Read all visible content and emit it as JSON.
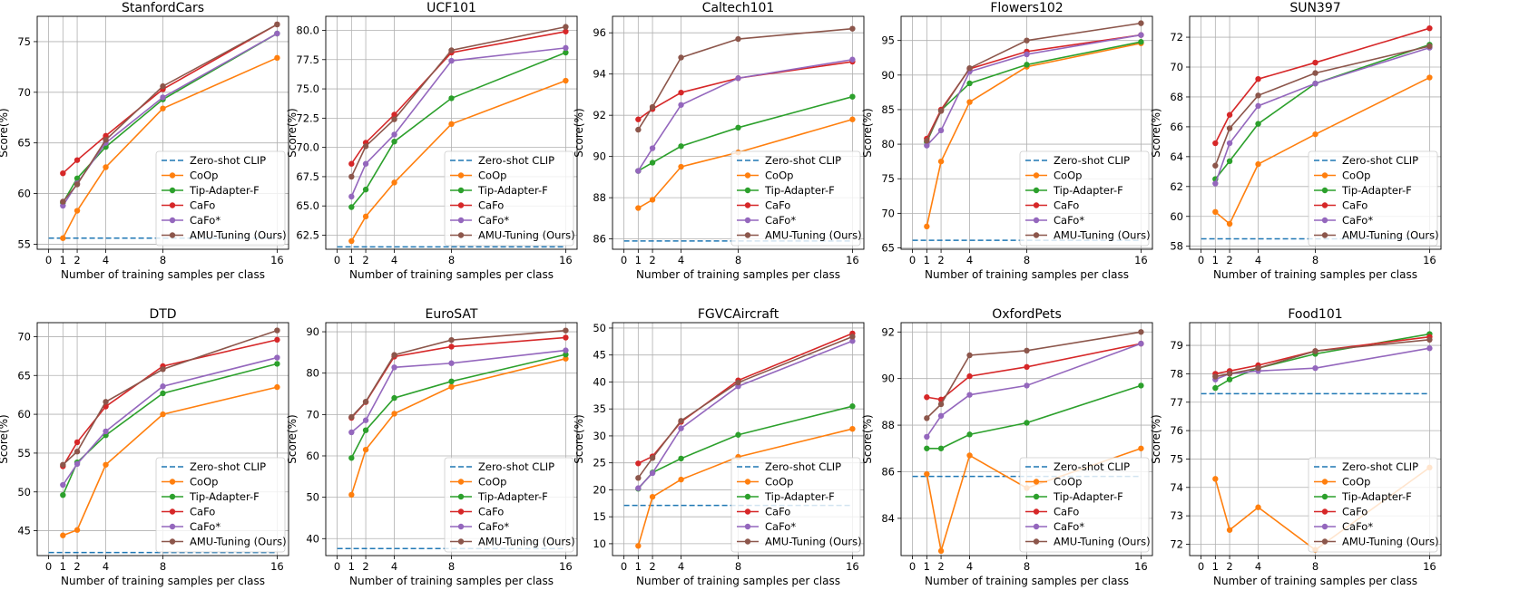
{
  "figure": {
    "xlabel": "Number of training samples per class",
    "ylabel": "Score(%)",
    "x_ticks": [
      0,
      1,
      2,
      4,
      8,
      16
    ],
    "shots": [
      1,
      2,
      4,
      8,
      16
    ],
    "legend": [
      "Zero-shot CLIP",
      "CoOp",
      "Tip-Adapter-F",
      "CaFo",
      "CaFo*",
      "AMU-Tuning (Ours)"
    ],
    "colors": {
      "Zero-shot CLIP": "#1f77b4",
      "CoOp": "#ff7f0e",
      "Tip-Adapter-F": "#2ca02c",
      "CaFo": "#d62728",
      "CaFo*": "#9467bd",
      "AMU-Tuning (Ours)": "#8c564b"
    }
  },
  "chart_data": [
    {
      "type": "line",
      "title": "StanfordCars",
      "ylim": [
        54.5,
        77.5
      ],
      "yticks": [
        55,
        60,
        65,
        70,
        75
      ],
      "ytick_labels": [
        "55",
        "60",
        "65",
        "70",
        "75"
      ],
      "zero_shot": 55.6,
      "series": [
        {
          "name": "CoOp",
          "values": [
            55.6,
            58.3,
            62.6,
            68.4,
            73.4
          ]
        },
        {
          "name": "Tip-Adapter-F",
          "values": [
            59.1,
            61.5,
            64.6,
            69.3,
            75.8
          ]
        },
        {
          "name": "CaFo",
          "values": [
            62.0,
            63.3,
            65.7,
            70.3,
            76.7
          ]
        },
        {
          "name": "CaFo*",
          "values": [
            58.8,
            61.0,
            65.0,
            69.5,
            75.8
          ]
        },
        {
          "name": "AMU-Tuning (Ours)",
          "values": [
            59.2,
            60.9,
            65.3,
            70.6,
            76.7
          ]
        }
      ]
    },
    {
      "type": "line",
      "title": "UCF101",
      "ylim": [
        61.3,
        81.2
      ],
      "yticks": [
        62.5,
        65.0,
        67.5,
        70.0,
        72.5,
        75.0,
        77.5,
        80.0
      ],
      "ytick_labels": [
        "62.5",
        "65.0",
        "67.5",
        "70.0",
        "72.5",
        "75.0",
        "77.5",
        "80.0"
      ],
      "zero_shot": 61.5,
      "series": [
        {
          "name": "CoOp",
          "values": [
            62.0,
            64.1,
            67.0,
            72.0,
            75.7
          ]
        },
        {
          "name": "Tip-Adapter-F",
          "values": [
            64.9,
            66.4,
            70.5,
            74.2,
            78.1
          ]
        },
        {
          "name": "CaFo",
          "values": [
            68.6,
            70.4,
            72.8,
            78.1,
            79.9
          ]
        },
        {
          "name": "CaFo*",
          "values": [
            65.8,
            68.6,
            71.1,
            77.4,
            78.5
          ]
        },
        {
          "name": "AMU-Tuning (Ours)",
          "values": [
            67.5,
            70.1,
            72.4,
            78.3,
            80.3
          ]
        }
      ]
    },
    {
      "type": "line",
      "title": "Caltech101",
      "ylim": [
        85.5,
        96.8
      ],
      "yticks": [
        86,
        88,
        90,
        92,
        94,
        96
      ],
      "ytick_labels": [
        "86",
        "88",
        "90",
        "92",
        "94",
        "96"
      ],
      "zero_shot": 85.9,
      "series": [
        {
          "name": "CoOp",
          "values": [
            87.5,
            87.9,
            89.5,
            90.2,
            91.8
          ]
        },
        {
          "name": "Tip-Adapter-F",
          "values": [
            89.3,
            89.7,
            90.5,
            91.4,
            92.9
          ]
        },
        {
          "name": "CaFo",
          "values": [
            91.8,
            92.3,
            93.1,
            93.8,
            94.6
          ]
        },
        {
          "name": "CaFo*",
          "values": [
            89.3,
            90.4,
            92.5,
            93.8,
            94.7
          ]
        },
        {
          "name": "AMU-Tuning (Ours)",
          "values": [
            91.3,
            92.4,
            94.8,
            95.7,
            96.2
          ]
        }
      ]
    },
    {
      "type": "line",
      "title": "Flowers102",
      "ylim": [
        64.8,
        98.5
      ],
      "yticks": [
        65,
        70,
        75,
        80,
        85,
        90,
        95
      ],
      "ytick_labels": [
        "65",
        "70",
        "75",
        "80",
        "85",
        "90",
        "95"
      ],
      "zero_shot": 66.1,
      "series": [
        {
          "name": "CoOp",
          "values": [
            68.1,
            77.5,
            86.1,
            91.2,
            94.6
          ]
        },
        {
          "name": "Tip-Adapter-F",
          "values": [
            80.3,
            84.9,
            88.8,
            91.5,
            94.8
          ]
        },
        {
          "name": "CaFo",
          "values": [
            80.8,
            85.0,
            90.9,
            93.4,
            95.8
          ]
        },
        {
          "name": "CaFo*",
          "values": [
            79.8,
            82.0,
            90.5,
            93.0,
            95.8
          ]
        },
        {
          "name": "AMU-Tuning (Ours)",
          "values": [
            80.5,
            84.8,
            91.0,
            95.0,
            97.5
          ]
        }
      ]
    },
    {
      "type": "line",
      "title": "SUN397",
      "ylim": [
        57.8,
        73.4
      ],
      "yticks": [
        58,
        60,
        62,
        64,
        66,
        68,
        70,
        72
      ],
      "ytick_labels": [
        "58",
        "60",
        "62",
        "64",
        "66",
        "68",
        "70",
        "72"
      ],
      "zero_shot": 58.5,
      "series": [
        {
          "name": "CoOp",
          "values": [
            60.3,
            59.5,
            63.5,
            65.5,
            69.3
          ]
        },
        {
          "name": "Tip-Adapter-F",
          "values": [
            62.5,
            63.7,
            66.2,
            68.9,
            71.5
          ]
        },
        {
          "name": "CaFo",
          "values": [
            64.9,
            66.8,
            69.2,
            70.3,
            72.6
          ]
        },
        {
          "name": "CaFo*",
          "values": [
            62.2,
            64.9,
            67.4,
            68.9,
            71.3
          ]
        },
        {
          "name": "AMU-Tuning (Ours)",
          "values": [
            63.4,
            65.9,
            68.1,
            69.6,
            71.4
          ]
        }
      ]
    },
    {
      "type": "line",
      "title": "DTD",
      "ylim": [
        41.8,
        71.8
      ],
      "yticks": [
        45,
        50,
        55,
        60,
        65,
        70
      ],
      "ytick_labels": [
        "45",
        "50",
        "55",
        "60",
        "65",
        "70"
      ],
      "zero_shot": 42.2,
      "series": [
        {
          "name": "CoOp",
          "values": [
            44.4,
            45.1,
            53.5,
            60.0,
            63.5
          ]
        },
        {
          "name": "Tip-Adapter-F",
          "values": [
            49.6,
            53.8,
            57.3,
            62.7,
            66.5
          ]
        },
        {
          "name": "CaFo",
          "values": [
            53.3,
            56.4,
            61.0,
            66.2,
            69.6
          ]
        },
        {
          "name": "CaFo*",
          "values": [
            50.9,
            53.6,
            57.8,
            63.6,
            67.3
          ]
        },
        {
          "name": "AMU-Tuning (Ours)",
          "values": [
            53.5,
            55.2,
            61.6,
            65.8,
            70.8
          ]
        }
      ]
    },
    {
      "type": "line",
      "title": "EuroSAT",
      "ylim": [
        35.9,
        92.2
      ],
      "yticks": [
        40,
        50,
        60,
        70,
        80,
        90
      ],
      "ytick_labels": [
        "40",
        "50",
        "60",
        "70",
        "80",
        "90"
      ],
      "zero_shot": 37.6,
      "series": [
        {
          "name": "CoOp",
          "values": [
            50.6,
            61.5,
            70.2,
            76.7,
            83.5
          ]
        },
        {
          "name": "Tip-Adapter-F",
          "values": [
            59.5,
            66.2,
            74.0,
            78.0,
            84.5
          ]
        },
        {
          "name": "CaFo",
          "values": [
            69.2,
            73.0,
            84.0,
            86.4,
            88.6
          ]
        },
        {
          "name": "CaFo*",
          "values": [
            65.7,
            68.6,
            81.4,
            82.4,
            85.5
          ]
        },
        {
          "name": "AMU-Tuning (Ours)",
          "values": [
            69.4,
            73.1,
            84.4,
            88.0,
            90.3
          ]
        }
      ]
    },
    {
      "type": "line",
      "title": "FGVCAircraft",
      "ylim": [
        7.8,
        51.0
      ],
      "yticks": [
        10,
        15,
        20,
        25,
        30,
        35,
        40,
        45,
        50
      ],
      "ytick_labels": [
        "10",
        "15",
        "20",
        "25",
        "30",
        "35",
        "40",
        "45",
        "50"
      ],
      "zero_shot": 17.1,
      "series": [
        {
          "name": "CoOp",
          "values": [
            9.6,
            18.7,
            21.9,
            26.1,
            31.3
          ]
        },
        {
          "name": "Tip-Adapter-F",
          "values": [
            20.2,
            23.2,
            25.8,
            30.2,
            35.5
          ]
        },
        {
          "name": "CaFo",
          "values": [
            24.9,
            26.2,
            32.6,
            40.3,
            49.0
          ]
        },
        {
          "name": "CaFo*",
          "values": [
            20.3,
            23.1,
            31.4,
            39.2,
            47.6
          ]
        },
        {
          "name": "AMU-Tuning (Ours)",
          "values": [
            22.2,
            25.9,
            32.8,
            39.9,
            48.4
          ]
        }
      ]
    },
    {
      "type": "line",
      "title": "OxfordPets",
      "ylim": [
        82.4,
        92.4
      ],
      "yticks": [
        84,
        86,
        88,
        90,
        92
      ],
      "ytick_labels": [
        "84",
        "86",
        "88",
        "90",
        "92"
      ],
      "zero_shot": 85.8,
      "series": [
        {
          "name": "CoOp",
          "values": [
            85.9,
            82.6,
            86.7,
            85.3,
            87.0
          ]
        },
        {
          "name": "Tip-Adapter-F",
          "values": [
            87.0,
            87.0,
            87.6,
            88.1,
            89.7
          ]
        },
        {
          "name": "CaFo",
          "values": [
            89.2,
            89.1,
            90.1,
            90.5,
            91.5
          ]
        },
        {
          "name": "CaFo*",
          "values": [
            87.5,
            88.4,
            89.3,
            89.7,
            91.5
          ]
        },
        {
          "name": "AMU-Tuning (Ours)",
          "values": [
            88.3,
            88.9,
            91.0,
            91.2,
            92.0
          ]
        }
      ]
    },
    {
      "type": "line",
      "title": "Food101",
      "ylim": [
        71.6,
        79.8
      ],
      "yticks": [
        72,
        73,
        74,
        75,
        76,
        77,
        78,
        79
      ],
      "ytick_labels": [
        "72",
        "73",
        "74",
        "75",
        "76",
        "77",
        "78",
        "79"
      ],
      "zero_shot": 77.3,
      "series": [
        {
          "name": "CoOp",
          "values": [
            74.3,
            72.5,
            73.3,
            71.8,
            74.7
          ]
        },
        {
          "name": "Tip-Adapter-F",
          "values": [
            77.5,
            77.8,
            78.2,
            78.7,
            79.4
          ]
        },
        {
          "name": "CaFo",
          "values": [
            78.0,
            78.1,
            78.3,
            78.8,
            79.3
          ]
        },
        {
          "name": "CaFo*",
          "values": [
            77.8,
            78.0,
            78.1,
            78.2,
            78.9
          ]
        },
        {
          "name": "AMU-Tuning (Ours)",
          "values": [
            77.9,
            78.0,
            78.2,
            78.8,
            79.2
          ]
        }
      ]
    }
  ]
}
